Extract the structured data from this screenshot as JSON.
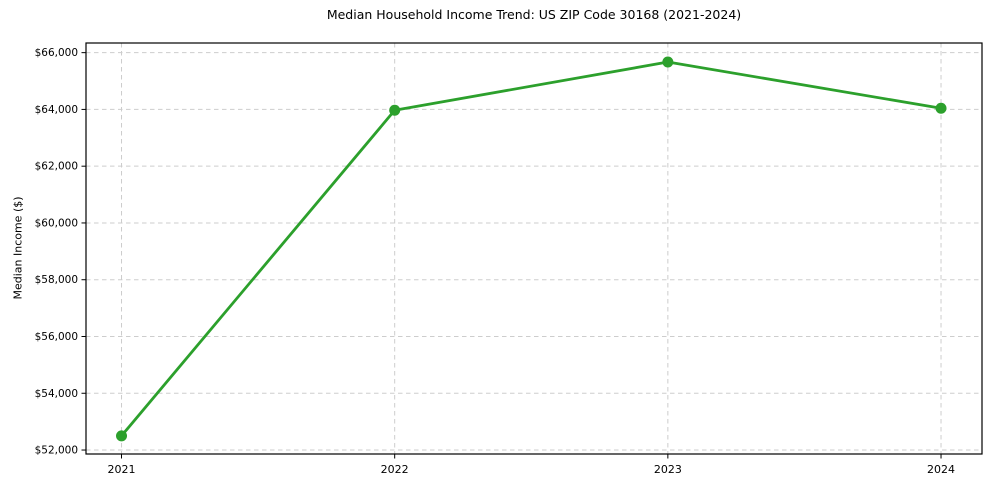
{
  "chart_data": {
    "type": "line",
    "title": "Median Household Income Trend: US ZIP Code 30168 (2021-2024)",
    "xlabel": "",
    "ylabel": "Median Income ($)",
    "categories": [
      "2021",
      "2022",
      "2023",
      "2024"
    ],
    "x": [
      2021,
      2022,
      2023,
      2024
    ],
    "series": [
      {
        "name": "Median Household Income",
        "values": [
          52500,
          63970,
          65670,
          64040
        ]
      }
    ],
    "xlim": [
      2020.87,
      2024.15
    ],
    "ylim": [
      51860,
      66340
    ],
    "yticks": [
      52000,
      54000,
      56000,
      58000,
      60000,
      62000,
      64000,
      66000
    ],
    "ytick_labels": [
      "$52,000",
      "$54,000",
      "$56,000",
      "$58,000",
      "$60,000",
      "$62,000",
      "$64,000",
      "$66,000"
    ],
    "grid": true,
    "grid_linestyle": "dashed",
    "grid_color": "#cdcdcd",
    "legend": false,
    "line_color": "#2ca02c",
    "marker": "circle",
    "marker_radius": 5.5,
    "spine_color": "#000000",
    "text_color": "#000000",
    "background": "#ffffff"
  }
}
